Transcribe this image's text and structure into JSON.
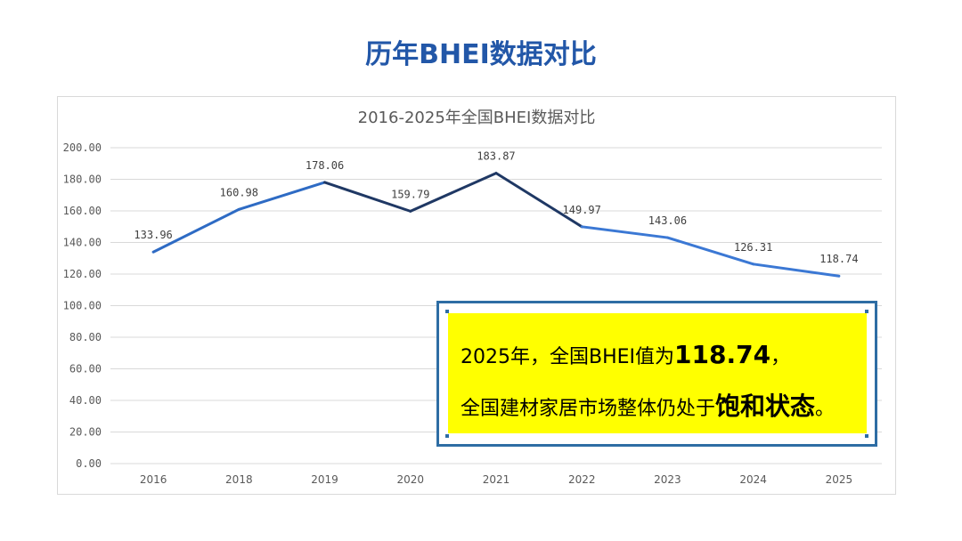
{
  "page_title": "历年BHEI数据对比",
  "callout": {
    "line1_prefix": "2025年，全国BHEI值为",
    "line1_value": "118.74",
    "line1_suffix": "，",
    "line2_prefix": "全国建材家居市场整体仍处于",
    "line2_emphasis": "饱和状态",
    "line2_suffix": "。",
    "border_color": "#2e6da4",
    "background_color": "#ffff00"
  },
  "chart_data": {
    "type": "line",
    "title": "2016-2025年全国BHEI数据对比",
    "categories": [
      "2016",
      "2018",
      "2019",
      "2020",
      "2021",
      "2022",
      "2023",
      "2024",
      "2025"
    ],
    "values": [
      133.96,
      160.98,
      178.06,
      159.79,
      183.87,
      149.97,
      143.06,
      126.31,
      118.74
    ],
    "labels": [
      "133.96",
      "160.98",
      "178.06",
      "159.79",
      "183.87",
      "149.97",
      "143.06",
      "126.31",
      "118.74"
    ],
    "yticks": [
      "0.00",
      "20.00",
      "40.00",
      "60.00",
      "80.00",
      "100.00",
      "120.00",
      "140.00",
      "160.00",
      "180.00",
      "200.00"
    ],
    "ylim": [
      0,
      200
    ],
    "grid": true,
    "segment_colors": [
      "#2e6bc4",
      "#2e6bc4",
      "#1f3864",
      "#1f3864",
      "#1f3864",
      "#3b78d4",
      "#3b78d4",
      "#3b78d4"
    ]
  }
}
